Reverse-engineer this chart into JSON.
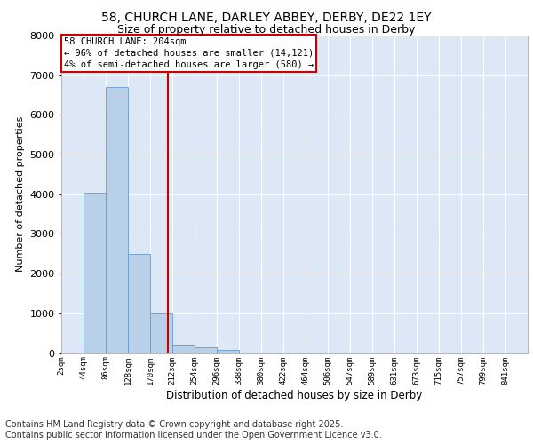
{
  "title_line1": "58, CHURCH LANE, DARLEY ABBEY, DERBY, DE22 1EY",
  "title_line2": "Size of property relative to detached houses in Derby",
  "xlabel": "Distribution of detached houses by size in Derby",
  "ylabel": "Number of detached properties",
  "bar_color": "#b8d0e8",
  "bar_edge_color": "#6699cc",
  "bg_color": "#dce8f5",
  "grid_color": "#ffffff",
  "annotation_text": "58 CHURCH LANE: 204sqm\n← 96% of detached houses are smaller (14,121)\n4% of semi-detached houses are larger (580) →",
  "annotation_box_color": "#cc0000",
  "vline_x": 204,
  "vline_color": "#cc0000",
  "categories": [
    "2sqm",
    "44sqm",
    "86sqm",
    "128sqm",
    "170sqm",
    "212sqm",
    "254sqm",
    "296sqm",
    "338sqm",
    "380sqm",
    "422sqm",
    "464sqm",
    "506sqm",
    "547sqm",
    "589sqm",
    "631sqm",
    "673sqm",
    "715sqm",
    "757sqm",
    "799sqm",
    "841sqm"
  ],
  "bin_starts": [
    2,
    44,
    86,
    128,
    170,
    212,
    254,
    296,
    338,
    380,
    422,
    464,
    506,
    547,
    589,
    631,
    673,
    715,
    757,
    799,
    841
  ],
  "bin_width": 42,
  "values": [
    0,
    4050,
    6700,
    2500,
    1000,
    200,
    150,
    80,
    0,
    0,
    0,
    0,
    0,
    0,
    0,
    0,
    0,
    0,
    0,
    0,
    0
  ],
  "ylim": [
    0,
    8000
  ],
  "yticks": [
    0,
    1000,
    2000,
    3000,
    4000,
    5000,
    6000,
    7000,
    8000
  ],
  "footnote": "Contains HM Land Registry data © Crown copyright and database right 2025.\nContains public sector information licensed under the Open Government Licence v3.0.",
  "footnote_fontsize": 7,
  "title_fontsize1": 10,
  "title_fontsize2": 9
}
